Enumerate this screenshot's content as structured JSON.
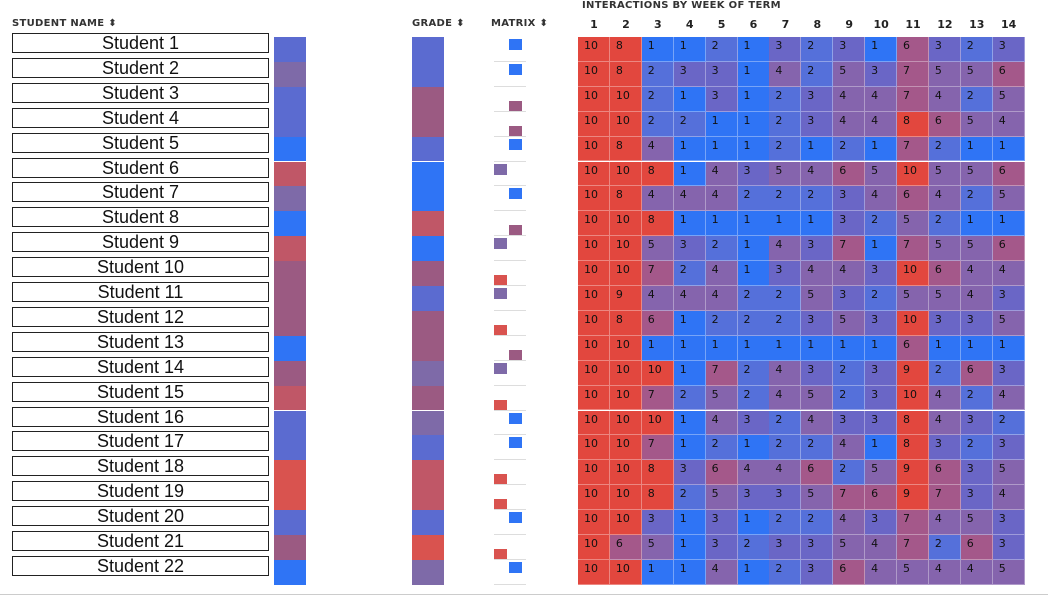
{
  "header": {
    "student_name": "STUDENT NAME",
    "grade": "GRADE",
    "matrix": "MATRIX",
    "sort_icon": "sort-arrows",
    "interactions_title": "INTERACTIONS BY WEEK OF TERM",
    "weeks": [
      "1",
      "2",
      "3",
      "4",
      "5",
      "6",
      "7",
      "8",
      "9",
      "10",
      "11",
      "12",
      "13",
      "14"
    ]
  },
  "colors": {
    "red": "#d9534f",
    "blue": "#2f74f5",
    "purple": "#7e6aa8",
    "mauve": "#9b5a82",
    "rose": "#c05767",
    "indigo": "#5b6bd0"
  },
  "students": [
    {
      "name": "Student 1",
      "name_color": "indigo",
      "grade_color": "indigo",
      "matrix_color": "blue",
      "matrix_pos": "top",
      "interactions": [
        "10",
        "8",
        "1",
        "1",
        "2",
        "1",
        "3",
        "2",
        "3",
        "1",
        "6",
        "3",
        "2",
        "3"
      ]
    },
    {
      "name": "Student 2",
      "name_color": "purple",
      "grade_color": "indigo",
      "matrix_color": "blue",
      "matrix_pos": "top",
      "interactions": [
        "10",
        "8",
        "2",
        "3",
        "3",
        "1",
        "4",
        "2",
        "5",
        "3",
        "7",
        "5",
        "5",
        "6"
      ]
    },
    {
      "name": "Student 3",
      "name_color": "indigo",
      "grade_color": "mauve",
      "matrix_color": "mauve",
      "matrix_pos": "bottom",
      "interactions": [
        "10",
        "10",
        "2",
        "1",
        "3",
        "1",
        "2",
        "3",
        "4",
        "4",
        "7",
        "4",
        "2",
        "5"
      ]
    },
    {
      "name": "Student 4",
      "name_color": "indigo",
      "grade_color": "mauve",
      "matrix_color": "mauve",
      "matrix_pos": "bottom",
      "interactions": [
        "10",
        "10",
        "2",
        "2",
        "1",
        "1",
        "2",
        "3",
        "4",
        "4",
        "8",
        "6",
        "5",
        "4"
      ]
    },
    {
      "name": "Student 5",
      "name_color": "blue",
      "grade_color": "indigo",
      "matrix_color": "blue",
      "matrix_pos": "top",
      "interactions": [
        "10",
        "8",
        "4",
        "1",
        "1",
        "1",
        "2",
        "1",
        "2",
        "1",
        "7",
        "2",
        "1",
        "1"
      ]
    },
    {
      "name": "Student 6",
      "name_color": "rose",
      "grade_color": "blue",
      "matrix_color": "purple",
      "matrix_pos": "left",
      "interactions": [
        "10",
        "10",
        "8",
        "1",
        "4",
        "3",
        "5",
        "4",
        "6",
        "5",
        "10",
        "5",
        "5",
        "6"
      ]
    },
    {
      "name": "Student 7",
      "name_color": "purple",
      "grade_color": "blue",
      "matrix_color": "blue",
      "matrix_pos": "top",
      "interactions": [
        "10",
        "8",
        "4",
        "4",
        "4",
        "2",
        "2",
        "2",
        "3",
        "4",
        "6",
        "4",
        "2",
        "5"
      ]
    },
    {
      "name": "Student 8",
      "name_color": "blue",
      "grade_color": "rose",
      "matrix_color": "mauve",
      "matrix_pos": "bottom",
      "interactions": [
        "10",
        "10",
        "8",
        "1",
        "1",
        "1",
        "1",
        "1",
        "3",
        "2",
        "5",
        "2",
        "1",
        "1"
      ]
    },
    {
      "name": "Student 9",
      "name_color": "rose",
      "grade_color": "blue",
      "matrix_color": "purple",
      "matrix_pos": "left",
      "interactions": [
        "10",
        "10",
        "5",
        "3",
        "2",
        "1",
        "4",
        "3",
        "7",
        "1",
        "7",
        "5",
        "5",
        "6"
      ]
    },
    {
      "name": "Student 10",
      "name_color": "mauve",
      "grade_color": "mauve",
      "matrix_color": "red",
      "matrix_pos": "left-bottom",
      "interactions": [
        "10",
        "10",
        "7",
        "2",
        "4",
        "1",
        "3",
        "4",
        "4",
        "3",
        "10",
        "6",
        "4",
        "4"
      ]
    },
    {
      "name": "Student 11",
      "name_color": "mauve",
      "grade_color": "indigo",
      "matrix_color": "purple",
      "matrix_pos": "left",
      "interactions": [
        "10",
        "9",
        "4",
        "4",
        "4",
        "2",
        "2",
        "5",
        "3",
        "2",
        "5",
        "5",
        "4",
        "3"
      ]
    },
    {
      "name": "Student 12",
      "name_color": "mauve",
      "grade_color": "mauve",
      "matrix_color": "red",
      "matrix_pos": "left-bottom",
      "interactions": [
        "10",
        "8",
        "6",
        "1",
        "2",
        "2",
        "2",
        "3",
        "5",
        "3",
        "10",
        "3",
        "3",
        "5"
      ]
    },
    {
      "name": "Student 13",
      "name_color": "blue",
      "grade_color": "mauve",
      "matrix_color": "mauve",
      "matrix_pos": "bottom",
      "interactions": [
        "10",
        "10",
        "1",
        "1",
        "1",
        "1",
        "1",
        "1",
        "1",
        "1",
        "6",
        "1",
        "1",
        "1"
      ]
    },
    {
      "name": "Student 14",
      "name_color": "mauve",
      "grade_color": "purple",
      "matrix_color": "purple",
      "matrix_pos": "left",
      "interactions": [
        "10",
        "10",
        "10",
        "1",
        "7",
        "2",
        "4",
        "3",
        "2",
        "3",
        "9",
        "2",
        "6",
        "3"
      ]
    },
    {
      "name": "Student 15",
      "name_color": "rose",
      "grade_color": "mauve",
      "matrix_color": "red",
      "matrix_pos": "left-bottom",
      "interactions": [
        "10",
        "10",
        "7",
        "2",
        "5",
        "2",
        "4",
        "5",
        "2",
        "3",
        "10",
        "4",
        "2",
        "4"
      ]
    },
    {
      "name": "Student 16",
      "name_color": "indigo",
      "grade_color": "purple",
      "matrix_color": "blue",
      "matrix_pos": "top",
      "interactions": [
        "10",
        "10",
        "10",
        "1",
        "4",
        "3",
        "2",
        "4",
        "3",
        "3",
        "8",
        "4",
        "3",
        "2"
      ]
    },
    {
      "name": "Student 17",
      "name_color": "indigo",
      "grade_color": "indigo",
      "matrix_color": "blue",
      "matrix_pos": "top",
      "interactions": [
        "10",
        "10",
        "7",
        "1",
        "2",
        "1",
        "2",
        "2",
        "4",
        "1",
        "8",
        "3",
        "2",
        "3"
      ]
    },
    {
      "name": "Student 18",
      "name_color": "red",
      "grade_color": "rose",
      "matrix_color": "red",
      "matrix_pos": "left-bottom",
      "interactions": [
        "10",
        "10",
        "8",
        "3",
        "6",
        "4",
        "4",
        "6",
        "2",
        "5",
        "9",
        "6",
        "3",
        "5"
      ]
    },
    {
      "name": "Student 19",
      "name_color": "red",
      "grade_color": "rose",
      "matrix_color": "red",
      "matrix_pos": "left-bottom",
      "interactions": [
        "10",
        "10",
        "8",
        "2",
        "5",
        "3",
        "3",
        "5",
        "7",
        "6",
        "9",
        "7",
        "3",
        "4"
      ]
    },
    {
      "name": "Student 20",
      "name_color": "indigo",
      "grade_color": "indigo",
      "matrix_color": "blue",
      "matrix_pos": "top",
      "interactions": [
        "10",
        "10",
        "3",
        "1",
        "3",
        "1",
        "2",
        "2",
        "4",
        "3",
        "7",
        "4",
        "5",
        "3"
      ]
    },
    {
      "name": "Student 21",
      "name_color": "mauve",
      "grade_color": "red",
      "matrix_color": "red",
      "matrix_pos": "left-bottom",
      "interactions": [
        "10",
        "6",
        "5",
        "1",
        "3",
        "2",
        "3",
        "3",
        "5",
        "4",
        "7",
        "2",
        "6",
        "3"
      ]
    },
    {
      "name": "Student 22",
      "name_color": "blue",
      "grade_color": "purple",
      "matrix_color": "blue",
      "matrix_pos": "top",
      "interactions": [
        "10",
        "10",
        "1",
        "1",
        "4",
        "1",
        "2",
        "3",
        "6",
        "4",
        "5",
        "4",
        "4",
        "5"
      ]
    }
  ],
  "heat_scale": {
    "low": "#2f74f5",
    "mid": "#7e6aa8",
    "high": "#e2473e"
  }
}
